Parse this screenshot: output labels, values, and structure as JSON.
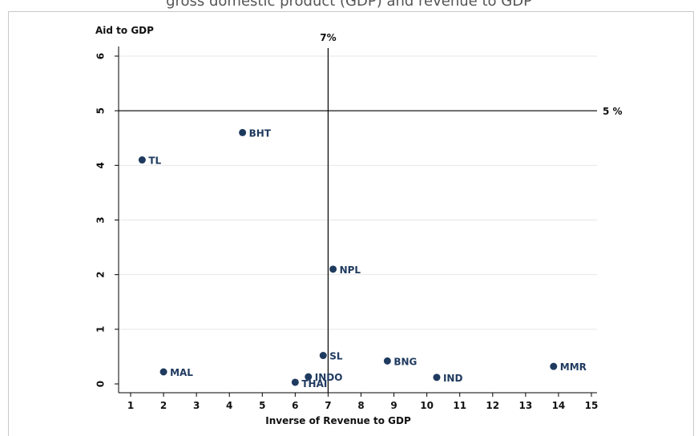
{
  "page": {
    "caption": "gross domestic product (GDP) and revenue to GDP"
  },
  "chart_data": {
    "type": "scatter",
    "ylabel": "Aid to GDP",
    "xlabel": "Inverse of Revenue to GDP",
    "xlim": [
      0.6,
      15.2
    ],
    "ylim": [
      -0.15,
      6.2
    ],
    "xticks": [
      1,
      2,
      3,
      4,
      5,
      6,
      7,
      8,
      9,
      10,
      11,
      12,
      13,
      14,
      15
    ],
    "yticks": [
      0,
      1,
      2,
      3,
      4,
      5,
      6
    ],
    "grid": "horizontal",
    "reference_lines": [
      {
        "orientation": "vertical",
        "value": 7,
        "label": "7%"
      },
      {
        "orientation": "horizontal",
        "value": 5,
        "label": "5 %"
      }
    ],
    "points": [
      {
        "label": "BHT",
        "x": 4.4,
        "y": 4.6
      },
      {
        "label": "TL",
        "x": 1.35,
        "y": 4.1
      },
      {
        "label": "NPL",
        "x": 7.15,
        "y": 2.1
      },
      {
        "label": "SL",
        "x": 6.85,
        "y": 0.52
      },
      {
        "label": "BNG",
        "x": 8.8,
        "y": 0.42
      },
      {
        "label": "MAL",
        "x": 2.0,
        "y": 0.22
      },
      {
        "label": "INDO",
        "x": 6.4,
        "y": 0.13
      },
      {
        "label": "THAI",
        "x": 6.0,
        "y": 0.03
      },
      {
        "label": "IND",
        "x": 10.3,
        "y": 0.12
      },
      {
        "label": "MMR",
        "x": 13.85,
        "y": 0.32
      }
    ],
    "colors": {
      "marker": "#1f3a5f",
      "reference": "#000000",
      "grid": "#e6e6e6"
    }
  }
}
